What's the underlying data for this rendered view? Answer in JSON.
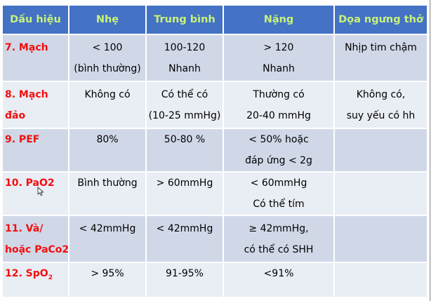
{
  "table": {
    "headers": [
      "Dấu hiệu",
      "Nhẹ",
      "Trung bình",
      "Nặng",
      "Dọa ngưng thở"
    ],
    "rows": [
      {
        "sign": [
          "7. Mạch"
        ],
        "mild": [
          "< 100",
          "(bình thường)"
        ],
        "moderate": [
          "100-120",
          "Nhanh"
        ],
        "severe": [
          "> 120",
          "Nhanh"
        ],
        "arrest": [
          "Nhịp tim chậm"
        ]
      },
      {
        "sign": [
          "8. Mạch",
          "đảo"
        ],
        "mild": [
          "Không có"
        ],
        "moderate": [
          "Có thể có",
          "(10-25 mmHg)"
        ],
        "severe": [
          "Thường có",
          "20-40 mmHg"
        ],
        "arrest": [
          "Không có,",
          "suy yếu có hh"
        ]
      },
      {
        "sign": [
          "9. PEF"
        ],
        "mild": [
          "80%"
        ],
        "moderate": [
          "50-80 %"
        ],
        "severe": [
          "< 50% hoặc",
          "đáp ứng < 2g"
        ],
        "arrest": []
      },
      {
        "sign": [
          "10. PaO2"
        ],
        "mild": [
          "Bình thường"
        ],
        "moderate": [
          "> 60mmHg"
        ],
        "severe": [
          "< 60mmHg",
          "Có thể tím"
        ],
        "arrest": []
      },
      {
        "sign": [
          "11. Và/",
          "hoặc PaCo2"
        ],
        "mild": [
          "< 42mmHg"
        ],
        "moderate": [
          "< 42mmHg"
        ],
        "severe": [
          "≥ 42mmHg,",
          "có thể có SHH"
        ],
        "arrest": []
      },
      {
        "sign_prefix": "12. SpO",
        "sign_sub": "2",
        "mild": [
          "> 95%"
        ],
        "moderate": [
          "91-95%"
        ],
        "severe": [
          "<91%"
        ],
        "arrest": []
      }
    ]
  },
  "colors": {
    "header_bg": "#4472c4",
    "header_text": "#c9f27a",
    "label_text": "#f20f0f",
    "row_dark": "#d0d8e8",
    "row_light": "#e9edf4"
  },
  "icons": {
    "cursor": "mouse-pointer-icon"
  }
}
